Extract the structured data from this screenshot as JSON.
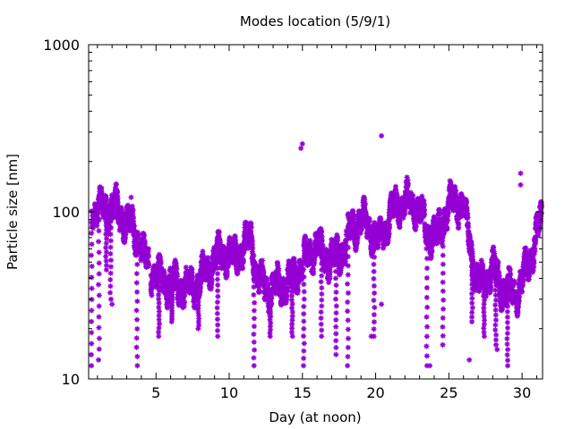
{
  "chart_data": {
    "type": "scatter",
    "title": "Modes location (5/9/1)",
    "xlabel": "Day (at noon)",
    "ylabel": "Particle size [nm]",
    "xlim": [
      0.4,
      31.4
    ],
    "ylim": [
      10,
      1000
    ],
    "yscale": "log",
    "grid": false,
    "x_ticks": [
      5,
      10,
      15,
      20,
      25,
      30
    ],
    "y_ticks": [
      10,
      100,
      1000
    ],
    "x_tick_labels": [
      "5",
      "10",
      "15",
      "20",
      "25",
      "30"
    ],
    "y_tick_labels": [
      "10",
      "100",
      "1000"
    ],
    "color": "#9400d3",
    "marker": "asterisk",
    "trend": [
      [
        0.4,
        100
      ],
      [
        1.0,
        103
      ],
      [
        1.6,
        106
      ],
      [
        2.2,
        104
      ],
      [
        2.7,
        94
      ],
      [
        3.1,
        85
      ],
      [
        3.6,
        75
      ],
      [
        4.0,
        60
      ],
      [
        4.6,
        46
      ],
      [
        5.2,
        40
      ],
      [
        5.8,
        38
      ],
      [
        6.5,
        36
      ],
      [
        7.2,
        35
      ],
      [
        7.8,
        37
      ],
      [
        8.4,
        44
      ],
      [
        9.0,
        52
      ],
      [
        9.6,
        58
      ],
      [
        10.2,
        52
      ],
      [
        10.8,
        58
      ],
      [
        11.5,
        70
      ],
      [
        12.0,
        38
      ],
      [
        12.8,
        34
      ],
      [
        13.5,
        36
      ],
      [
        14.2,
        38
      ],
      [
        14.8,
        46
      ],
      [
        15.5,
        56
      ],
      [
        16.0,
        64
      ],
      [
        16.5,
        54
      ],
      [
        17.2,
        52
      ],
      [
        17.8,
        60
      ],
      [
        18.4,
        80
      ],
      [
        19.0,
        90
      ],
      [
        19.6,
        80
      ],
      [
        20.2,
        65
      ],
      [
        20.8,
        85
      ],
      [
        21.4,
        110
      ],
      [
        22.0,
        112
      ],
      [
        22.6,
        114
      ],
      [
        23.1,
        95
      ],
      [
        23.6,
        75
      ],
      [
        24.2,
        70
      ],
      [
        24.6,
        90
      ],
      [
        25.0,
        108
      ],
      [
        25.5,
        115
      ],
      [
        26.0,
        110
      ],
      [
        26.5,
        60
      ],
      [
        27.0,
        36
      ],
      [
        27.5,
        40
      ],
      [
        28.0,
        46
      ],
      [
        28.5,
        36
      ],
      [
        29.0,
        34
      ],
      [
        29.5,
        32
      ],
      [
        30.0,
        38
      ],
      [
        30.5,
        50
      ],
      [
        31.0,
        75
      ],
      [
        31.4,
        90
      ]
    ],
    "gaps": [
      [
        0.45,
        0.65
      ],
      [
        3.8,
        3.95
      ],
      [
        4.5,
        4.65
      ],
      [
        6.0,
        6.1
      ],
      [
        11.8,
        11.9
      ],
      [
        15.0,
        15.1
      ],
      [
        18.0,
        18.1
      ],
      [
        20.4,
        20.5
      ],
      [
        26.0,
        26.15
      ],
      [
        29.5,
        29.6
      ]
    ],
    "dips": [
      [
        0.6,
        12
      ],
      [
        1.1,
        13
      ],
      [
        1.6,
        45
      ],
      [
        1.9,
        30
      ],
      [
        3.7,
        12
      ],
      [
        5.2,
        18
      ],
      [
        6.1,
        22
      ],
      [
        7.9,
        20
      ],
      [
        9.2,
        18
      ],
      [
        11.7,
        12
      ],
      [
        12.8,
        18
      ],
      [
        14.3,
        18
      ],
      [
        15.1,
        12
      ],
      [
        16.3,
        18
      ],
      [
        17.3,
        14
      ],
      [
        18.1,
        12
      ],
      [
        19.9,
        18
      ],
      [
        23.5,
        12
      ],
      [
        24.6,
        16
      ],
      [
        26.6,
        22
      ],
      [
        27.4,
        18
      ],
      [
        28.2,
        16
      ],
      [
        29.0,
        12
      ]
    ],
    "outliers": [
      [
        14.9,
        240
      ],
      [
        15.0,
        255
      ],
      [
        20.4,
        285
      ],
      [
        20.4,
        28
      ],
      [
        19.7,
        18
      ],
      [
        28.3,
        15
      ],
      [
        26.4,
        13
      ],
      [
        23.7,
        12
      ],
      [
        29.9,
        170
      ],
      [
        29.9,
        145
      ],
      [
        3.3,
        122
      ],
      [
        2.0,
        28
      ]
    ]
  }
}
